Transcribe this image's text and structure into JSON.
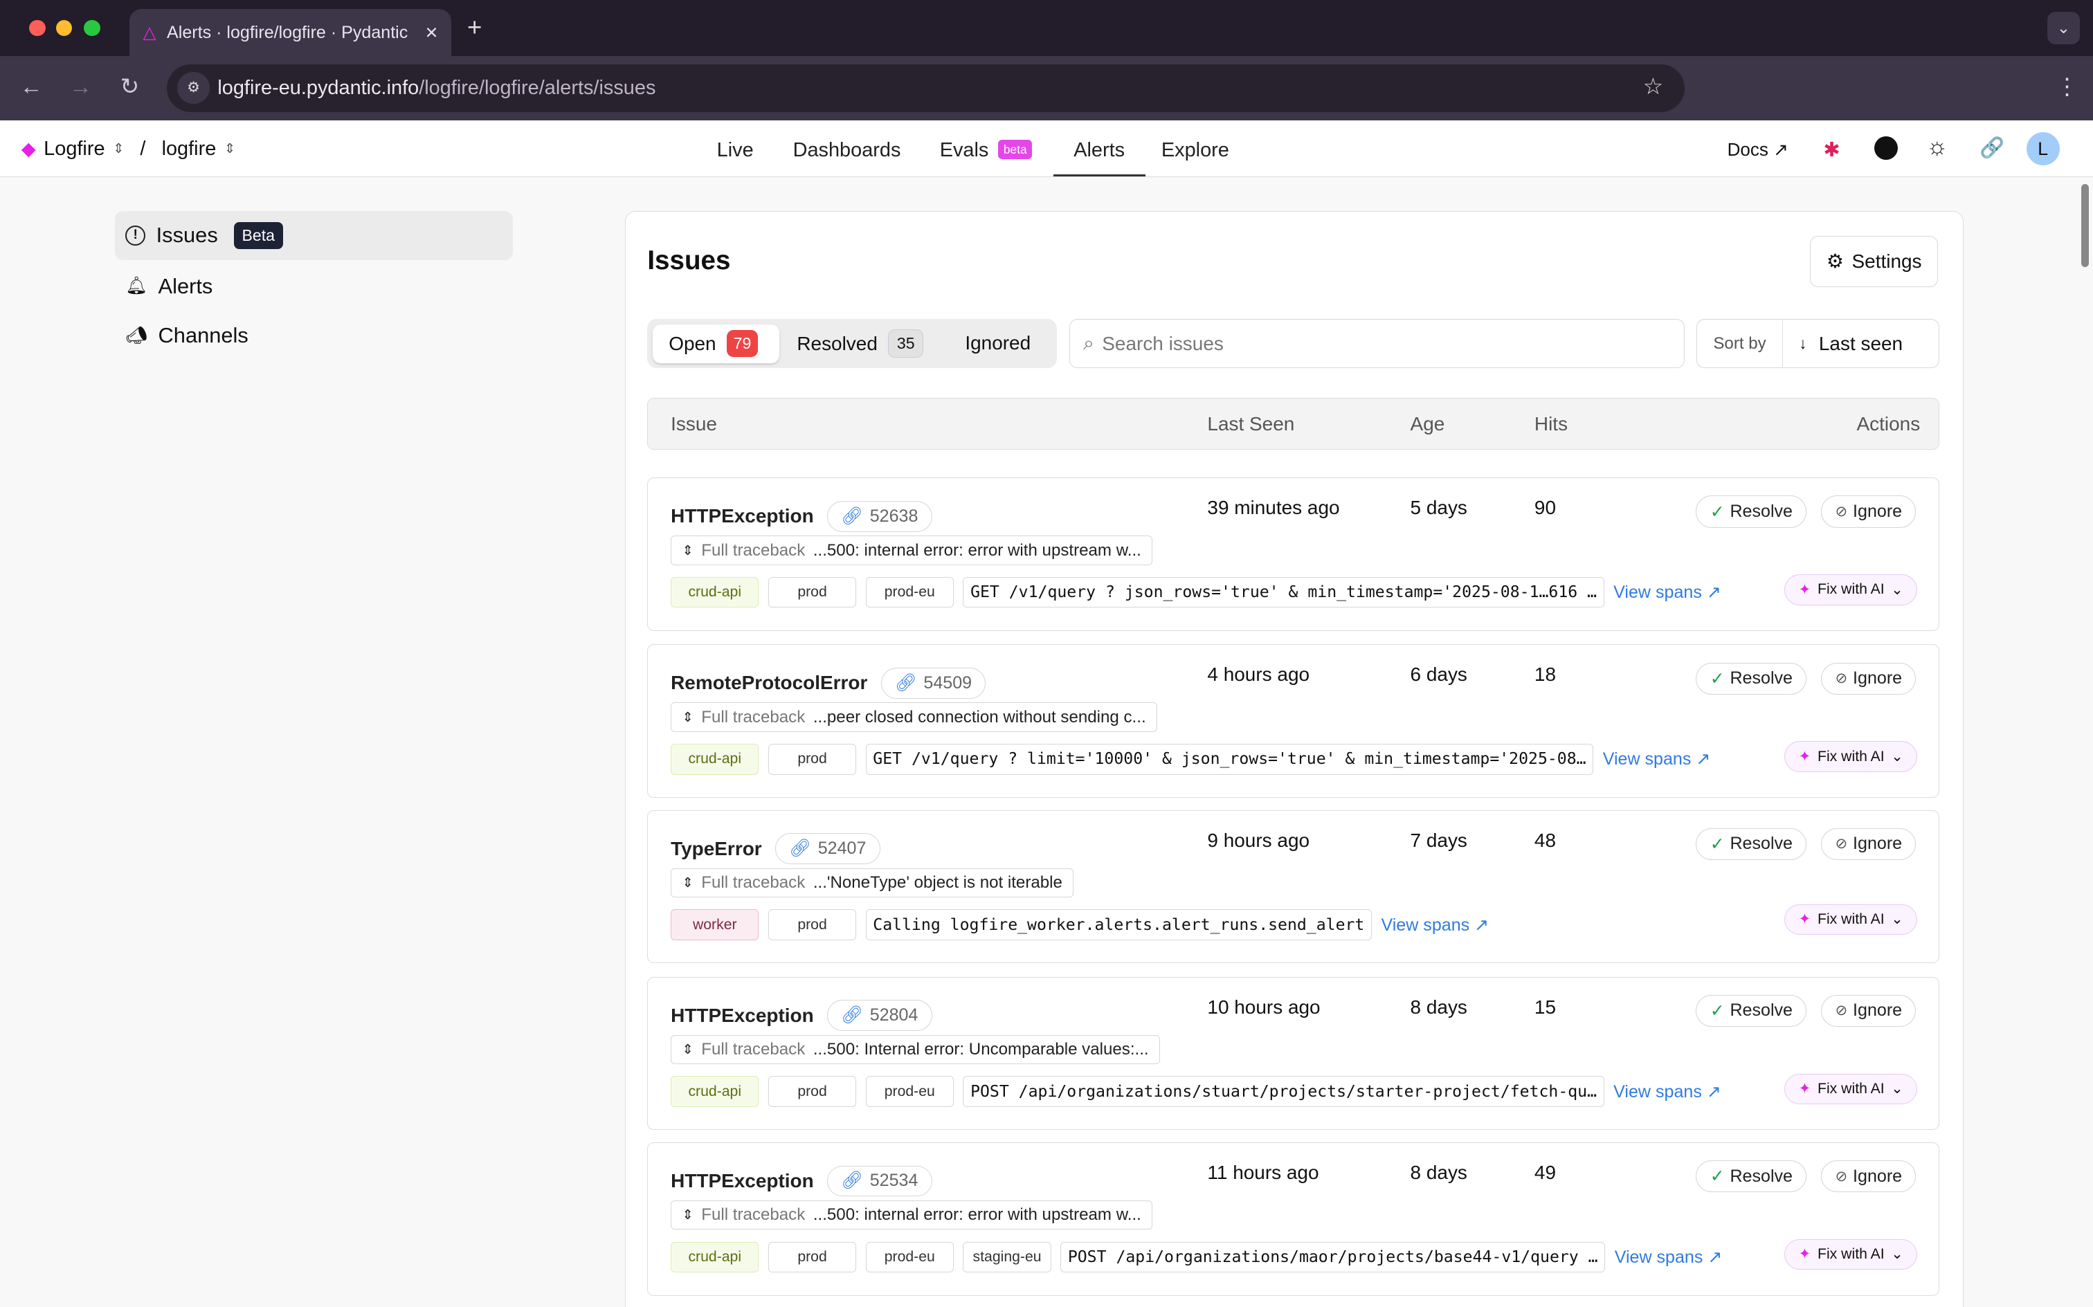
{
  "browser": {
    "tab_title": "Alerts · logfire/logfire · Pydantic",
    "url_host": "logfire-eu.pydantic.info",
    "url_path": "/logfire/logfire/alerts/issues",
    "new_tab": "+",
    "close": "×"
  },
  "header": {
    "org": "Logfire",
    "sep": "/",
    "project": "logfire",
    "nav": [
      {
        "label": "Live"
      },
      {
        "label": "Dashboards"
      },
      {
        "label": "Evals",
        "badge": "beta"
      },
      {
        "label": "Alerts",
        "active": true
      },
      {
        "label": "Explore"
      }
    ],
    "docs": "Docs",
    "avatar": "L"
  },
  "sidebar": {
    "items": [
      {
        "label": "Issues",
        "badge": "Beta",
        "active": true
      },
      {
        "label": "Alerts"
      },
      {
        "label": "Channels"
      }
    ]
  },
  "main": {
    "title": "Issues",
    "settings": "Settings",
    "filters": [
      {
        "label": "Open",
        "count": "79"
      },
      {
        "label": "Resolved",
        "count": "35"
      },
      {
        "label": "Ignored"
      }
    ],
    "search_placeholder": "Search issues",
    "sort_label": "Sort by",
    "sort_value": "Last seen",
    "columns": [
      "Issue",
      "Last Seen",
      "Age",
      "Hits",
      "Actions"
    ],
    "traceback_label": "Full traceback",
    "resolve": "Resolve",
    "ignore": "Ignore",
    "view_spans": "View spans",
    "fix_ai": "Fix with AI",
    "rows": [
      {
        "title": "HTTPException",
        "id": "52638",
        "traceback": "...500: internal error: error with upstream w...",
        "tags": [
          "crud-api",
          "prod",
          "prod-eu"
        ],
        "cmd": "GET /v1/query ? json_rows='true' & min_timestamp='2025-08-1…616 …",
        "last_seen": "39 minutes ago",
        "age": "5 days",
        "hits": "90"
      },
      {
        "title": "RemoteProtocolError",
        "id": "54509",
        "traceback": "...peer closed connection without sending c...",
        "tags": [
          "crud-api",
          "prod"
        ],
        "cmd": "GET /v1/query ? limit='10000' & json_rows='true' & min_timestamp='2025-08…",
        "last_seen": "4 hours ago",
        "age": "6 days",
        "hits": "18"
      },
      {
        "title": "TypeError",
        "id": "52407",
        "traceback": "...'NoneType' object is not iterable",
        "tags": [
          "worker",
          "prod"
        ],
        "cmd": "Calling logfire_worker.alerts.alert_runs.send_alert",
        "last_seen": "9 hours ago",
        "age": "7 days",
        "hits": "48"
      },
      {
        "title": "HTTPException",
        "id": "52804",
        "traceback": "...500: Internal error: Uncomparable values:...",
        "tags": [
          "crud-api",
          "prod",
          "prod-eu"
        ],
        "cmd": "POST /api/organizations/stuart/projects/starter-project/fetch-qu…",
        "last_seen": "10 hours ago",
        "age": "8 days",
        "hits": "15"
      },
      {
        "title": "HTTPException",
        "id": "52534",
        "traceback": "...500: internal error: error with upstream w...",
        "tags": [
          "crud-api",
          "prod",
          "prod-eu",
          "staging-eu"
        ],
        "cmd": "POST /api/organizations/maor/projects/base44-v1/query …",
        "last_seen": "11 hours ago",
        "age": "8 days",
        "hits": "49"
      }
    ]
  },
  "colors": {
    "accent": "#e520e9",
    "open_badge": "#ef4444",
    "link": "#2f7be0"
  }
}
